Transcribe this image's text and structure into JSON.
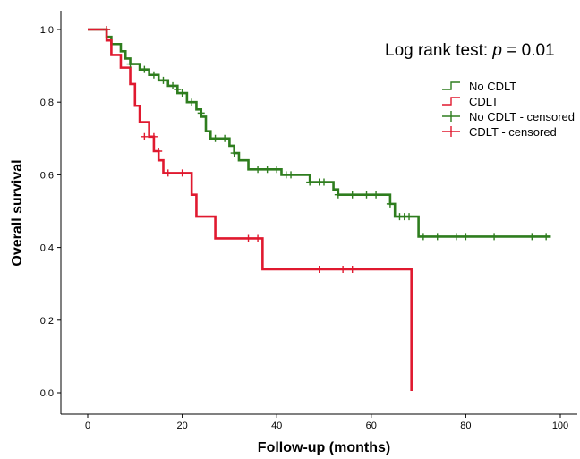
{
  "chart_data": {
    "type": "line",
    "subtype": "kaplan-meier",
    "xlabel": "Follow-up (months)",
    "ylabel": "Overall survival",
    "xlim": [
      0,
      100
    ],
    "ylim": [
      0,
      1
    ],
    "x_ticks": [
      "0",
      "20",
      "40",
      "60",
      "80",
      "100"
    ],
    "y_ticks": [
      "0.0",
      "0.2",
      "0.4",
      "0.6",
      "0.8",
      "1.0"
    ],
    "grid": false,
    "legend_position": "top-right",
    "annotation": {
      "prefix": "Log rank test: ",
      "symbol": "p",
      "suffix": " = 0.01"
    },
    "legend": [
      {
        "label": "No CDLT",
        "kind": "line",
        "color": "#2e7d1e"
      },
      {
        "label": "CDLT",
        "kind": "line",
        "color": "#e0192f"
      },
      {
        "label": "No CDLT - censored",
        "kind": "censor",
        "color": "#2e7d1e"
      },
      {
        "label": "CDLT - censored",
        "kind": "censor",
        "color": "#e0192f"
      }
    ],
    "series": [
      {
        "name": "No CDLT",
        "color": "#2e7d1e",
        "steps": [
          [
            0,
            1.0
          ],
          [
            4,
            0.98
          ],
          [
            5,
            0.96
          ],
          [
            7,
            0.94
          ],
          [
            8,
            0.92
          ],
          [
            9,
            0.905
          ],
          [
            11,
            0.89
          ],
          [
            13,
            0.875
          ],
          [
            15,
            0.86
          ],
          [
            17,
            0.845
          ],
          [
            19,
            0.825
          ],
          [
            21,
            0.8
          ],
          [
            23,
            0.78
          ],
          [
            24,
            0.76
          ],
          [
            25,
            0.72
          ],
          [
            26,
            0.7
          ],
          [
            30,
            0.68
          ],
          [
            31,
            0.66
          ],
          [
            32,
            0.64
          ],
          [
            34,
            0.615
          ],
          [
            41,
            0.6
          ],
          [
            47,
            0.58
          ],
          [
            52,
            0.56
          ],
          [
            53,
            0.545
          ],
          [
            64,
            0.52
          ],
          [
            65,
            0.485
          ],
          [
            70,
            0.43
          ],
          [
            98,
            0.43
          ]
        ],
        "censored": [
          [
            4,
            1.0
          ],
          [
            9,
            0.905
          ],
          [
            12,
            0.89
          ],
          [
            14,
            0.875
          ],
          [
            16,
            0.86
          ],
          [
            18,
            0.845
          ],
          [
            19,
            0.835
          ],
          [
            20,
            0.825
          ],
          [
            22,
            0.8
          ],
          [
            24,
            0.77
          ],
          [
            27,
            0.7
          ],
          [
            29,
            0.7
          ],
          [
            31,
            0.66
          ],
          [
            36,
            0.615
          ],
          [
            38,
            0.615
          ],
          [
            40,
            0.615
          ],
          [
            42,
            0.6
          ],
          [
            43,
            0.6
          ],
          [
            47,
            0.58
          ],
          [
            49,
            0.58
          ],
          [
            50,
            0.58
          ],
          [
            53,
            0.545
          ],
          [
            56,
            0.545
          ],
          [
            59,
            0.545
          ],
          [
            61,
            0.545
          ],
          [
            64,
            0.52
          ],
          [
            66,
            0.485
          ],
          [
            67,
            0.485
          ],
          [
            68,
            0.485
          ],
          [
            71,
            0.43
          ],
          [
            74,
            0.43
          ],
          [
            78,
            0.43
          ],
          [
            80,
            0.43
          ],
          [
            86,
            0.43
          ],
          [
            94,
            0.43
          ],
          [
            97,
            0.43
          ]
        ]
      },
      {
        "name": "CDLT",
        "color": "#e0192f",
        "steps": [
          [
            0,
            1.0
          ],
          [
            4,
            0.97
          ],
          [
            5,
            0.93
          ],
          [
            7,
            0.895
          ],
          [
            9,
            0.85
          ],
          [
            10,
            0.79
          ],
          [
            11,
            0.745
          ],
          [
            13,
            0.705
          ],
          [
            14,
            0.665
          ],
          [
            15,
            0.64
          ],
          [
            16,
            0.605
          ],
          [
            22,
            0.545
          ],
          [
            23,
            0.485
          ],
          [
            27,
            0.425
          ],
          [
            37,
            0.34
          ],
          [
            68.5,
            0.34
          ],
          [
            68.5,
            0.005
          ]
        ],
        "censored": [
          [
            4,
            1.0
          ],
          [
            12,
            0.705
          ],
          [
            14,
            0.705
          ],
          [
            15,
            0.665
          ],
          [
            17,
            0.605
          ],
          [
            20,
            0.605
          ],
          [
            34,
            0.425
          ],
          [
            36,
            0.425
          ],
          [
            49,
            0.34
          ],
          [
            54,
            0.34
          ],
          [
            56,
            0.34
          ]
        ]
      }
    ]
  }
}
